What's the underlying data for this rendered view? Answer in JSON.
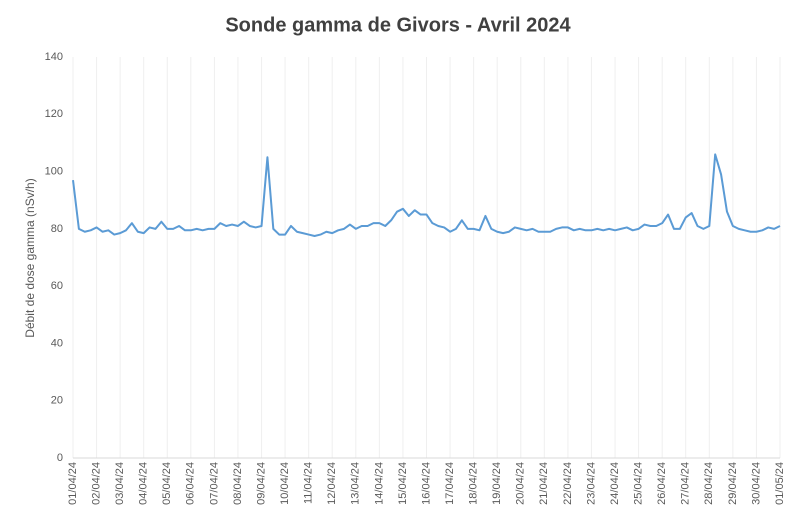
{
  "chart_data": {
    "type": "line",
    "title": "Sonde gamma de Givors - Avril 2024",
    "y_label": "Débit de dose gamma (nSv/h)",
    "x": [
      0,
      0.25,
      0.5,
      0.75,
      1,
      1.25,
      1.5,
      1.75,
      2,
      2.25,
      2.5,
      2.75,
      3,
      3.25,
      3.5,
      3.75,
      4,
      4.25,
      4.5,
      4.75,
      5,
      5.25,
      5.5,
      5.75,
      6,
      6.25,
      6.5,
      6.75,
      7,
      7.25,
      7.5,
      7.75,
      8,
      8.25,
      8.5,
      8.75,
      9,
      9.25,
      9.5,
      9.75,
      10,
      10.25,
      10.5,
      10.75,
      11,
      11.25,
      11.5,
      11.75,
      12,
      12.25,
      12.5,
      12.75,
      13,
      13.25,
      13.5,
      13.75,
      14,
      14.25,
      14.5,
      14.75,
      15,
      15.25,
      15.5,
      15.75,
      16,
      16.25,
      16.5,
      16.75,
      17,
      17.25,
      17.5,
      17.75,
      18,
      18.25,
      18.5,
      18.75,
      19,
      19.25,
      19.5,
      19.75,
      20,
      20.25,
      20.5,
      20.75,
      21,
      21.25,
      21.5,
      21.75,
      22,
      22.25,
      22.5,
      22.75,
      23,
      23.25,
      23.5,
      23.75,
      24,
      24.25,
      24.5,
      24.75,
      25,
      25.25,
      25.5,
      25.75,
      26,
      26.25,
      26.5,
      26.75,
      27,
      27.25,
      27.5,
      27.75,
      28,
      28.25,
      28.5,
      28.75,
      29,
      29.25,
      29.5,
      29.75,
      30
    ],
    "series": [
      {
        "name": "Débit de dose gamma",
        "color": "#5b9bd5",
        "values": [
          97,
          80,
          79,
          79.5,
          80.5,
          79,
          79.5,
          78,
          78.5,
          79.5,
          82,
          79,
          78.5,
          80.5,
          80,
          82.5,
          80,
          80,
          81,
          79.5,
          79.5,
          80,
          79.5,
          80,
          80,
          82,
          81,
          81.5,
          81,
          82.5,
          81,
          80.5,
          81,
          105,
          80,
          78,
          78,
          81,
          79,
          78.5,
          78,
          77.5,
          78,
          79,
          78.5,
          79.5,
          80,
          81.5,
          80,
          81,
          81,
          82,
          82,
          81,
          83,
          86,
          87,
          84.5,
          86.5,
          85,
          85,
          82,
          81,
          80.5,
          79,
          80,
          83,
          80,
          80,
          79.5,
          84.5,
          80,
          79,
          78.5,
          79,
          80.5,
          80,
          79.5,
          80,
          79,
          79,
          79,
          80,
          80.5,
          80.5,
          79.5,
          80,
          79.5,
          79.5,
          80,
          79.5,
          80,
          79.5,
          80,
          80.5,
          79.5,
          80,
          81.5,
          81,
          81,
          82,
          85,
          80,
          80,
          84,
          85.5,
          81,
          80,
          81,
          106,
          99,
          86,
          81,
          80,
          79.5,
          79,
          79,
          79.5,
          80.5,
          80,
          81
        ]
      }
    ],
    "xlim": [
      0,
      30
    ],
    "xticks": [
      {
        "value": 0,
        "label": "01/04/24"
      },
      {
        "value": 1,
        "label": "02/04/24"
      },
      {
        "value": 2,
        "label": "03/04/24"
      },
      {
        "value": 3,
        "label": "04/04/24"
      },
      {
        "value": 4,
        "label": "05/04/24"
      },
      {
        "value": 5,
        "label": "06/04/24"
      },
      {
        "value": 6,
        "label": "07/04/24"
      },
      {
        "value": 7,
        "label": "08/04/24"
      },
      {
        "value": 8,
        "label": "09/04/24"
      },
      {
        "value": 9,
        "label": "10/04/24"
      },
      {
        "value": 10,
        "label": "11/04/24"
      },
      {
        "value": 11,
        "label": "12/04/24"
      },
      {
        "value": 12,
        "label": "13/04/24"
      },
      {
        "value": 13,
        "label": "14/04/24"
      },
      {
        "value": 14,
        "label": "15/04/24"
      },
      {
        "value": 15,
        "label": "16/04/24"
      },
      {
        "value": 16,
        "label": "17/04/24"
      },
      {
        "value": 17,
        "label": "18/04/24"
      },
      {
        "value": 18,
        "label": "19/04/24"
      },
      {
        "value": 19,
        "label": "20/04/24"
      },
      {
        "value": 20,
        "label": "21/04/24"
      },
      {
        "value": 21,
        "label": "22/04/24"
      },
      {
        "value": 22,
        "label": "23/04/24"
      },
      {
        "value": 23,
        "label": "24/04/24"
      },
      {
        "value": 24,
        "label": "25/04/24"
      },
      {
        "value": 25,
        "label": "26/04/24"
      },
      {
        "value": 26,
        "label": "27/04/24"
      },
      {
        "value": 27,
        "label": "28/04/24"
      },
      {
        "value": 28,
        "label": "29/04/24"
      },
      {
        "value": 29,
        "label": "30/04/24"
      },
      {
        "value": 30,
        "label": "01/05/24"
      }
    ],
    "ylim": [
      0,
      140
    ],
    "yticks": [
      0,
      20,
      40,
      60,
      80,
      100,
      120,
      140
    ],
    "grid": "x"
  }
}
